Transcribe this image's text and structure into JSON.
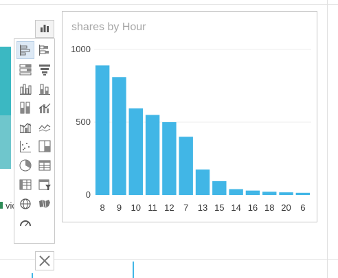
{
  "background": {
    "legend_fragment": "vic",
    "colors": {
      "teal": "#3bb8c2",
      "green": "#2e8b57",
      "accent": "#41b6e6"
    }
  },
  "toolbar": {
    "chart_type_icon": "column-chart-icon",
    "close_icon": "close-icon"
  },
  "palette": {
    "icons": [
      "bar-clustered-icon",
      "bar-stacked-icon",
      "bar-100-stacked-icon",
      "funnel-icon",
      "column-clustered-icon",
      "column-stacked-icon",
      "column-100-stacked-icon",
      "line-clustered-column-icon",
      "line-stacked-column-icon",
      "line-chart-icon",
      "scatter-chart-icon",
      "treemap-icon",
      "pie-chart-icon",
      "table-icon",
      "matrix-icon",
      "slicer-icon",
      "map-icon",
      "filled-map-icon",
      "gauge-icon"
    ],
    "selected": "bar-clustered-icon"
  },
  "chart_data": {
    "type": "bar",
    "title": "shares by Hour",
    "categories": [
      "8",
      "9",
      "10",
      "11",
      "12",
      "7",
      "13",
      "15",
      "14",
      "16",
      "18",
      "20",
      "6"
    ],
    "values": [
      890,
      810,
      595,
      550,
      500,
      400,
      175,
      95,
      40,
      30,
      22,
      18,
      15
    ],
    "yticks": [
      "0",
      "500",
      "1000"
    ],
    "ylim": [
      0,
      1000
    ],
    "xlabel": "",
    "ylabel": "",
    "grid": true,
    "bar_color": "#41b6e6"
  }
}
